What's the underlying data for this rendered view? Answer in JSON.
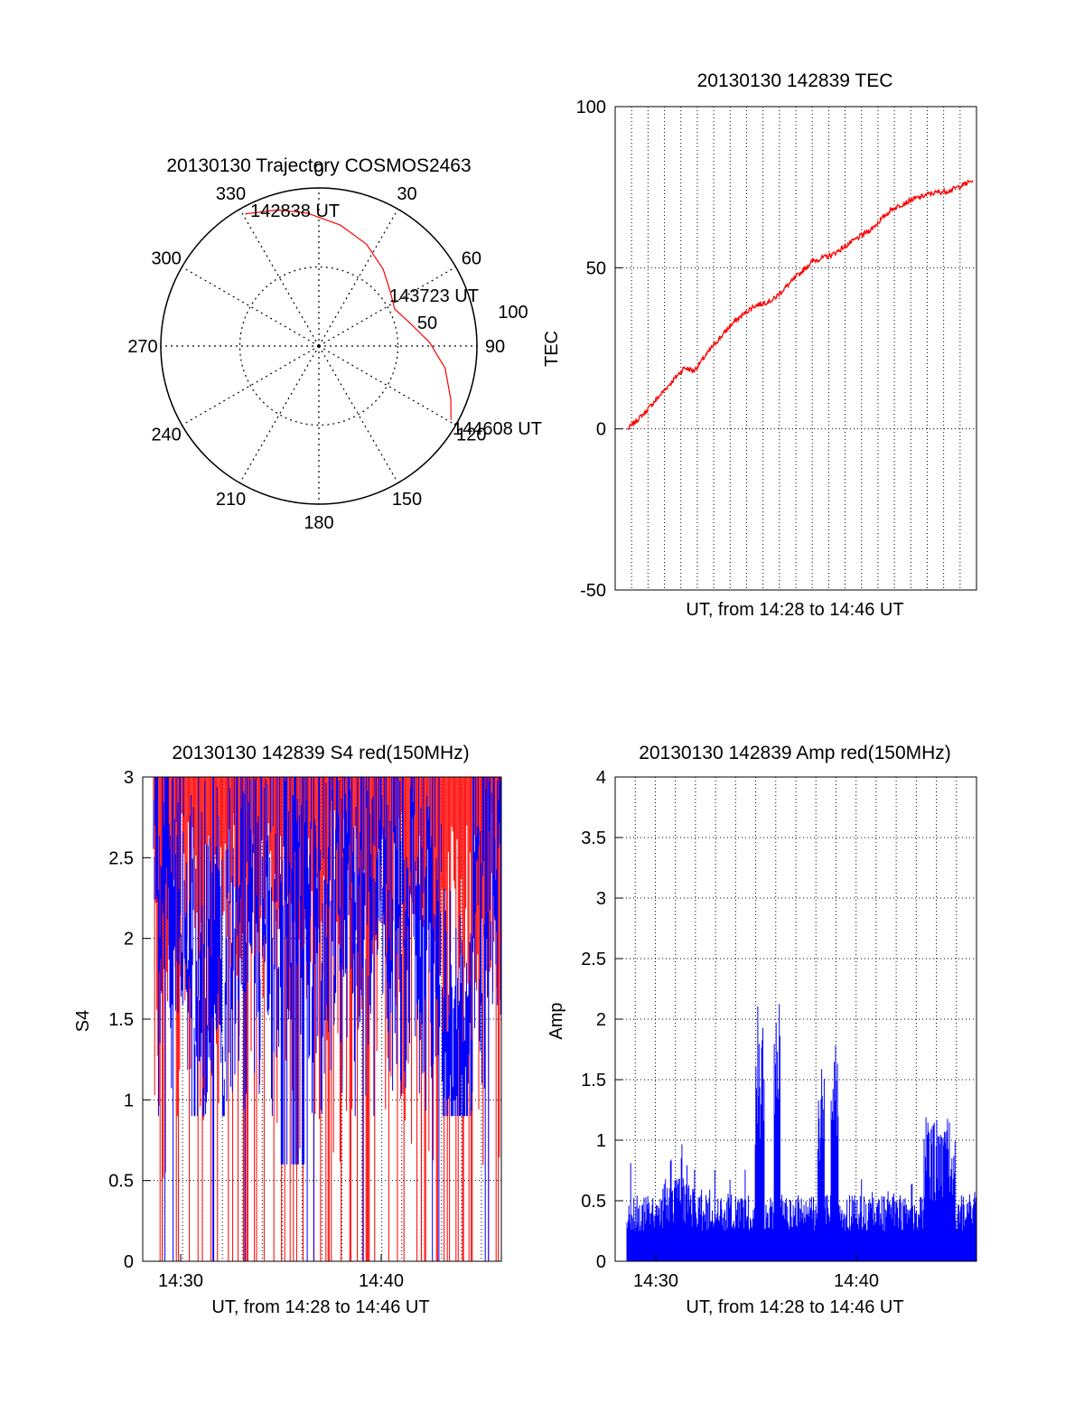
{
  "chart_data": [
    {
      "type": "polar",
      "title": "20130130 Trajectory COSMOS2463",
      "angle_labels": [
        "0",
        "30",
        "60",
        "90",
        "120",
        "150",
        "180",
        "210",
        "240",
        "270",
        "300",
        "330"
      ],
      "radius_labels": [
        "50",
        "100"
      ],
      "series": [
        {
          "color": "#ff0000",
          "points": [
            {
              "azimuth": 331,
              "elevation": 4
            },
            {
              "azimuth": 343,
              "elevation": 9
            },
            {
              "azimuth": 355,
              "elevation": 14
            },
            {
              "azimuth": 10,
              "elevation": 20
            },
            {
              "azimuth": 25,
              "elevation": 26
            },
            {
              "azimuth": 40,
              "elevation": 33
            },
            {
              "azimuth": 53,
              "elevation": 39
            },
            {
              "azimuth": 64,
              "elevation": 42
            },
            {
              "azimuth": 75,
              "elevation": 37
            },
            {
              "azimuth": 88,
              "elevation": 27
            },
            {
              "azimuth": 100,
              "elevation": 17
            },
            {
              "azimuth": 112,
              "elevation": 9
            },
            {
              "azimuth": 119,
              "elevation": 4
            }
          ]
        }
      ],
      "annotations": [
        {
          "text": "142838 UT",
          "azimuth": 333,
          "elevation": 4
        },
        {
          "text": "143723 UT",
          "azimuth": 53,
          "elevation": 43
        },
        {
          "text": "144608 UT",
          "azimuth": 119,
          "elevation": 3
        }
      ]
    },
    {
      "type": "line",
      "title": "20130130 142839 TEC",
      "xlabel": "UT, from 14:28 to 14:46 UT",
      "ylabel": "TEC",
      "xlim": [
        "14:28:00",
        "14:46:20"
      ],
      "ylim": [
        -50,
        100
      ],
      "yticks": [
        "-50",
        "0",
        "50",
        "100"
      ],
      "grid": true,
      "series": [
        {
          "color": "#ff0000",
          "x": [
            "14:28:39",
            "14:29:30",
            "14:30:30",
            "14:31:30",
            "14:32:00",
            "14:33:00",
            "14:34:00",
            "14:35:00",
            "14:36:00",
            "14:37:00",
            "14:38:00",
            "14:39:00",
            "14:40:00",
            "14:41:00",
            "14:42:00",
            "14:43:00",
            "14:44:00",
            "14:45:00",
            "14:46:08"
          ],
          "values": [
            0,
            5,
            12,
            19,
            18,
            26,
            33,
            38,
            40,
            46,
            52,
            54,
            58,
            62,
            68,
            71,
            73,
            74,
            77
          ]
        }
      ]
    },
    {
      "type": "bar",
      "title": "20130130 142839 S4 red(150MHz)",
      "xlabel": "UT, from 14:28 to 14:46 UT",
      "ylabel": "S4",
      "xticks": [
        "14:30",
        "14:40"
      ],
      "yticks": [
        "0",
        "0.5",
        "1",
        "1.5",
        "2",
        "2.5",
        "3"
      ],
      "ylim": [
        0,
        3
      ],
      "grid": true,
      "series": [
        {
          "color": "#ff0000",
          "description": "dense spikes reaching the 3.0 limit"
        },
        {
          "color": "#0000ff",
          "description": "noisy S4 trace between 1 and 3"
        }
      ]
    },
    {
      "type": "bar",
      "title": "20130130 142839 Amp red(150MHz)",
      "xlabel": "UT, from 14:28 to 14:46 UT",
      "ylabel": "Amp",
      "xticks": [
        "14:30",
        "14:40"
      ],
      "yticks": [
        "0",
        "0.5",
        "1",
        "1.5",
        "2",
        "2.5",
        "3",
        "3.5",
        "4"
      ],
      "ylim": [
        0,
        4
      ],
      "grid": true,
      "series": [
        {
          "color": "#0000ff",
          "description": "amplitude noise ~0.4 with bursts near 14:36, 14:39 and 14:44"
        }
      ]
    }
  ]
}
